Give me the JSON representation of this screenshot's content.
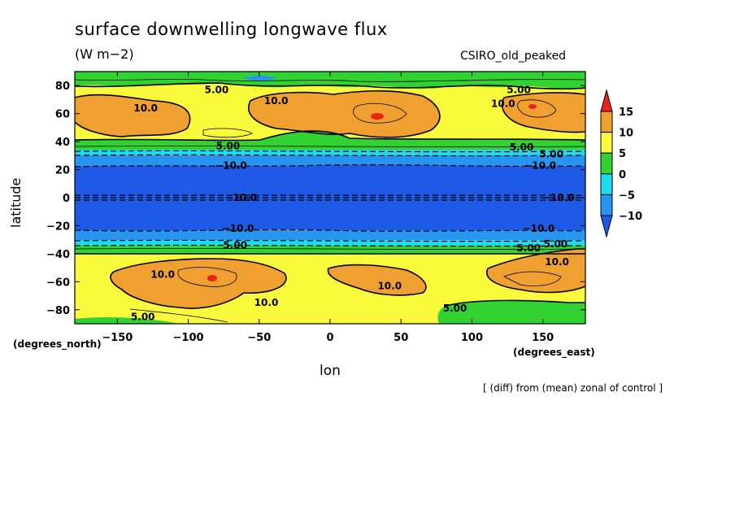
{
  "chart_data": {
    "type": "heatmap",
    "title": "surface downwelling longwave flux",
    "units": "(W m−2)",
    "model": "CSIRO_old_peaked",
    "xlabel": "lon",
    "ylabel": "latitude",
    "xlabel_units": "(degrees_east)",
    "ylabel_units": "(degrees_north)",
    "note": "[ (diff) from (mean) zonal of control ]",
    "xlim": [
      -180,
      180
    ],
    "ylim": [
      -90,
      90
    ],
    "x_ticks": [
      "−150",
      "−100",
      "−50",
      "0",
      "50",
      "100",
      "150"
    ],
    "x_tick_values": [
      -150,
      -100,
      -50,
      0,
      50,
      100,
      150
    ],
    "y_ticks": [
      "80",
      "60",
      "40",
      "20",
      "0",
      "−20",
      "−40",
      "−60",
      "−80"
    ],
    "y_tick_values": [
      80,
      60,
      40,
      20,
      0,
      -20,
      -40,
      -60,
      -80
    ],
    "colorbar": {
      "labels": [
        "15",
        "10",
        "5",
        "0",
        "−5",
        "−10"
      ],
      "levels": [
        15,
        10,
        5,
        0,
        -5,
        -10
      ],
      "colors": [
        "#e8231c",
        "#f0a030",
        "#fafa3c",
        "#32d232",
        "#1edcf0",
        "#2896f0",
        "#1e5ae6"
      ]
    },
    "contour_labels": [
      {
        "text": "5.00",
        "lon": -80,
        "lat": 77
      },
      {
        "text": "5.00",
        "lon": 133,
        "lat": 77
      },
      {
        "text": "10.0",
        "lon": -130,
        "lat": 64
      },
      {
        "text": "10.0",
        "lon": -38,
        "lat": 69
      },
      {
        "text": "10.0",
        "lon": 122,
        "lat": 67
      },
      {
        "text": "5.00",
        "lon": -72,
        "lat": 37
      },
      {
        "text": "5.00",
        "lon": 135,
        "lat": 36
      },
      {
        "text": "5.00",
        "lon": 156,
        "lat": 31
      },
      {
        "text": "−10.0",
        "lon": -70,
        "lat": 23
      },
      {
        "text": "−10.0",
        "lon": 148,
        "lat": 23
      },
      {
        "text": "−10.0",
        "lon": -63,
        "lat": 0
      },
      {
        "text": "−10.0",
        "lon": 161,
        "lat": 0
      },
      {
        "text": "−10.0",
        "lon": -65,
        "lat": -22
      },
      {
        "text": "−10.0",
        "lon": 147,
        "lat": -22
      },
      {
        "text": "5.00",
        "lon": -67,
        "lat": -34
      },
      {
        "text": "5.00",
        "lon": 159,
        "lat": -33
      },
      {
        "text": "5.00",
        "lon": 140,
        "lat": -36
      },
      {
        "text": "10.0",
        "lon": -118,
        "lat": -55
      },
      {
        "text": "10.0",
        "lon": 42,
        "lat": -63
      },
      {
        "text": "10.0",
        "lon": -45,
        "lat": -75
      },
      {
        "text": "10.0",
        "lon": 160,
        "lat": -46
      },
      {
        "text": "5.00",
        "lon": 88,
        "lat": -79
      },
      {
        "text": "5.00",
        "lon": -132,
        "lat": -85
      }
    ],
    "grid": false
  }
}
